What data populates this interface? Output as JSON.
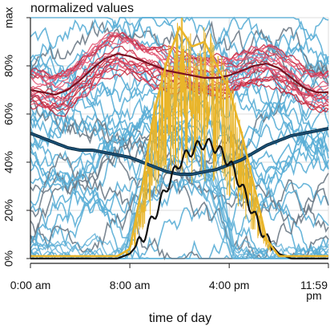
{
  "chart_data": {
    "type": "line",
    "title": "normalized values",
    "xlabel": "time of day",
    "ylabel": "",
    "xlim": [
      0,
      1439
    ],
    "ylim": [
      0,
      100
    ],
    "x_ticks": [
      {
        "value": 0,
        "label": "0:00 am"
      },
      {
        "value": 480,
        "label": "8:00 am"
      },
      {
        "value": 960,
        "label": "4:00 pm"
      },
      {
        "value": 1439,
        "label": "11:59 pm"
      }
    ],
    "y_ticks": [
      {
        "value": 0,
        "label": "0%"
      },
      {
        "value": 20,
        "label": "20%"
      },
      {
        "value": 40,
        "label": "40%"
      },
      {
        "value": 60,
        "label": "60%"
      },
      {
        "value": 80,
        "label": "80%"
      },
      {
        "value": 100,
        "label": "max"
      }
    ],
    "grid": true,
    "x": [
      0,
      60,
      120,
      180,
      240,
      300,
      360,
      420,
      480,
      540,
      600,
      660,
      720,
      780,
      840,
      900,
      960,
      1020,
      1080,
      1140,
      1200,
      1260,
      1320,
      1380,
      1439
    ],
    "series": [
      {
        "color": "#7a1020",
        "values": [
          70,
          69,
          68,
          70,
          74,
          79,
          83,
          85,
          84,
          82,
          80,
          78,
          77,
          76,
          75,
          75,
          76,
          78,
          80,
          81,
          79,
          75,
          71,
          69,
          69
        ]
      },
      {
        "color": "#1a4f74",
        "values": [
          52,
          50,
          48,
          46,
          45,
          45,
          44,
          43,
          42,
          40,
          38,
          36,
          35,
          35,
          36,
          37,
          39,
          41,
          44,
          47,
          49,
          51,
          52,
          53,
          54
        ]
      },
      {
        "color": "#111111",
        "values": [
          0,
          0,
          0,
          0,
          0,
          0,
          0,
          0,
          2,
          8,
          18,
          30,
          40,
          45,
          48,
          46,
          40,
          30,
          18,
          8,
          2,
          0,
          0,
          0,
          0
        ]
      },
      {
        "color": "#e9b52a",
        "values": [
          1,
          1,
          1,
          1,
          1,
          1,
          1,
          1,
          4,
          30,
          62,
          82,
          96,
          88,
          90,
          80,
          70,
          52,
          30,
          8,
          1,
          1,
          1,
          1,
          1
        ]
      }
    ],
    "colors": {
      "blue_lines": "#5aaed6",
      "gray_lines": "#6d7a86",
      "pink_lines": "#e0506e",
      "red_lines": "#c4243a",
      "grid": "#dcdcdc"
    }
  }
}
